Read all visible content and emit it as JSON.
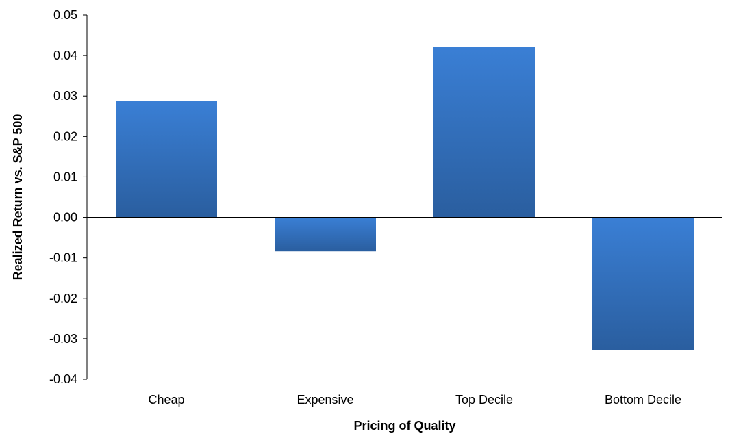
{
  "chart_data": {
    "type": "bar",
    "title": "",
    "xlabel": "Pricing of Quality",
    "ylabel": "Realized Return vs. S&P 500",
    "categories": [
      "Cheap",
      "Expensive",
      "Top Decile",
      "Bottom Decile"
    ],
    "values": [
      0.0287,
      -0.0084,
      0.0422,
      -0.0328
    ],
    "ylim": [
      -0.04,
      0.05
    ],
    "yticks": [
      "-0.04",
      "-0.03",
      "-0.02",
      "-0.01",
      "0.00",
      "0.01",
      "0.02",
      "0.03",
      "0.04",
      "0.05"
    ],
    "grid": false,
    "legend": "none",
    "colors": {
      "bar_top": "#3A7FD5",
      "bar_bottom": "#2A5E9F",
      "axis": "#000000"
    }
  }
}
